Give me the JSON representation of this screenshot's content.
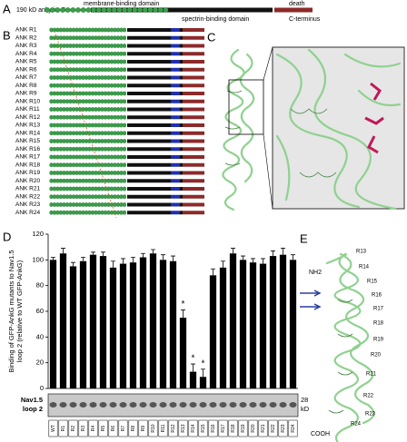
{
  "panels": {
    "a": "A",
    "b": "B",
    "c": "C",
    "d": "D",
    "e": "E"
  },
  "panel_a": {
    "protein": "190 kD ankyrin-G",
    "membrane": "membrane-binding domain",
    "spectrin": "spectrin-binding domain",
    "death": "death",
    "cterm": "C-terminus"
  },
  "panel_b": {
    "rows": [
      "ANK R1",
      "ANK R2",
      "ANK R3",
      "ANK R4",
      "ANK R5",
      "ANK R6",
      "ANK R7",
      "ANK R8",
      "ANK R9",
      "ANK R10",
      "ANK R11",
      "ANK R12",
      "ANK R13",
      "ANK R14",
      "ANK R15",
      "ANK R16",
      "ANK R17",
      "ANK R18",
      "ANK R19",
      "ANK R20",
      "ANK R21",
      "ANK R22",
      "ANK R23",
      "ANK R24"
    ]
  },
  "panel_e": {
    "nterm": "NH2",
    "cterm": "COOH",
    "repeats": [
      "R13",
      "R14",
      "R15",
      "R16",
      "R17",
      "R18",
      "R19",
      "R20",
      "R21",
      "R22",
      "R23",
      "R24"
    ]
  },
  "chart_data": {
    "type": "bar",
    "ylabel": [
      "Binding of GFP-AnkG mutants to Nav1.5",
      "loop 2 (relative to WT GFP-AnkG)"
    ],
    "categories": [
      "WT",
      "R1",
      "R2",
      "R3",
      "R4",
      "R5",
      "R6",
      "R7",
      "R8",
      "R9",
      "R10",
      "R11",
      "R12",
      "R13",
      "R14",
      "R15",
      "R16",
      "R17",
      "R18",
      "R19",
      "R20",
      "R21",
      "R22",
      "R23",
      "R24"
    ],
    "values": [
      100,
      105,
      95,
      99,
      104,
      103,
      94,
      97,
      98,
      102,
      105,
      100,
      99,
      55,
      13,
      9,
      88,
      94,
      105,
      100,
      98,
      97,
      103,
      104,
      100
    ],
    "errors": [
      2,
      4,
      3,
      3,
      2,
      3,
      5,
      4,
      4,
      3,
      3,
      4,
      4,
      6,
      6,
      6,
      5,
      5,
      4,
      3,
      3,
      4,
      4,
      5,
      4
    ],
    "color": "#000000",
    "ylim": [
      0,
      120
    ],
    "yticks": [
      0,
      20,
      40,
      60,
      80,
      100,
      120
    ],
    "annotations": [
      {
        "text": "*",
        "x": "R13"
      },
      {
        "text": "*",
        "x": "R14"
      },
      {
        "text": "*",
        "x": "R15"
      }
    ],
    "blot_label": [
      "Nav1.5",
      "loop 2"
    ],
    "blot_size": "28",
    "blot_unit": "kD"
  }
}
